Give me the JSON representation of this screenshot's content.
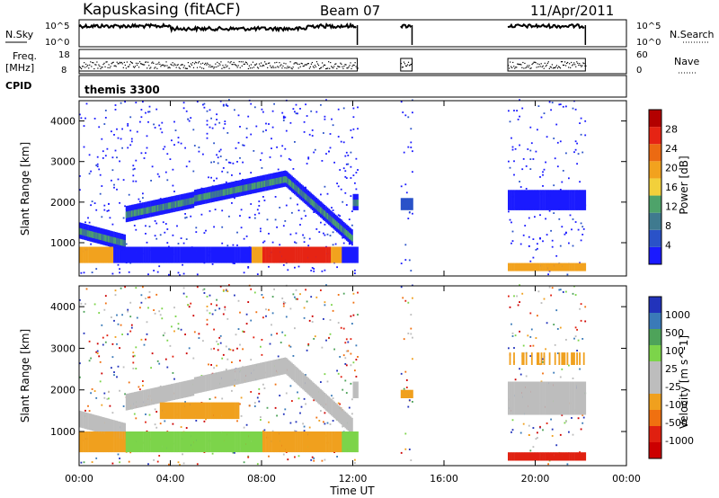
{
  "header": {
    "station": "Kapuskasing (fitACF)",
    "beam": "Beam 07",
    "date": "11/Apr/2011"
  },
  "strips": {
    "nsky_label": "N.Sky",
    "nsky_ticks": [
      "10^5",
      "10^0"
    ],
    "nsearch_label": "N.Search",
    "nsearch_ticks": [
      "10^5",
      "10^0"
    ],
    "freq_label": "Freq.",
    "freq_unit": "[MHz]",
    "freq_ticks": [
      "18",
      "8"
    ],
    "nave_label": "Nave",
    "nave_ticks": [
      "60",
      "0"
    ],
    "cpid_label": "CPID",
    "cpid_value": "themis 3300"
  },
  "colors": {
    "power_scale": [
      "#1a1aff",
      "#2a52c8",
      "#3f7a8f",
      "#4ea36a",
      "#f2d03b",
      "#f2a21e",
      "#ec6a12",
      "#e62414",
      "#b30000"
    ],
    "velocity_scale": [
      "#2233bb",
      "#3a7ab8",
      "#4ea35a",
      "#7cd44a",
      "#bdbdbd",
      "#bdbdbd",
      "#f0a01e",
      "#f07010",
      "#e02010",
      "#cc0000"
    ]
  },
  "chart_data": [
    {
      "type": "heatmap",
      "title": "Power",
      "ylabel": "Slant Range [km]",
      "xlabel": "Time UT",
      "x_range_hours": [
        0,
        24
      ],
      "ylim": [
        180,
        4500
      ],
      "y_ticks": [
        1000,
        2000,
        3000,
        4000
      ],
      "x_ticks": [
        "00:00",
        "04:00",
        "08:00",
        "12:00",
        "16:00",
        "20:00",
        "00:00"
      ],
      "colorbar": {
        "label": "Power [dB]",
        "range": [
          0,
          30
        ],
        "ticks": [
          "4",
          "8",
          "12",
          "16",
          "20",
          "24",
          "28"
        ]
      },
      "data_coverage_hours": [
        [
          0,
          12.2
        ],
        [
          14.1,
          14.6
        ],
        [
          18.8,
          22.2
        ]
      ]
    },
    {
      "type": "heatmap",
      "title": "Velocity",
      "ylabel": "Slant Range [km]",
      "xlabel": "Time UT",
      "x_range_hours": [
        0,
        24
      ],
      "ylim": [
        180,
        4500
      ],
      "y_ticks": [
        1000,
        2000,
        3000,
        4000
      ],
      "x_ticks": [
        "00:00",
        "04:00",
        "08:00",
        "12:00",
        "16:00",
        "20:00",
        "00:00"
      ],
      "colorbar": {
        "label": "Velocity [m s^-1]",
        "ticks": [
          "1000",
          "500",
          "100",
          "25",
          "-25",
          "-100",
          "-500",
          "-1000"
        ]
      },
      "data_coverage_hours": [
        [
          0,
          12.2
        ],
        [
          14.1,
          14.6
        ],
        [
          18.8,
          22.2
        ]
      ]
    }
  ]
}
